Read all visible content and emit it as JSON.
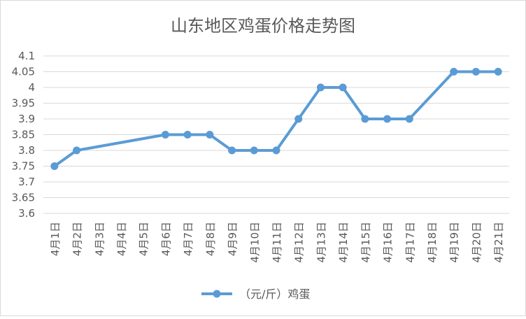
{
  "chart_data": {
    "type": "line",
    "title": "山东地区鸡蛋价格走势图",
    "xlabel": "",
    "ylabel": "",
    "categories": [
      "4月1日",
      "4月2日",
      "4月3日",
      "4月4日",
      "4月5日",
      "4月6日",
      "4月7日",
      "4月8日",
      "4月9日",
      "4月10日",
      "4月11日",
      "4月12日",
      "4月13日",
      "4月14日",
      "4月15日",
      "4月16日",
      "4月17日",
      "4月18日",
      "4月19日",
      "4月20日",
      "4月21日"
    ],
    "series": [
      {
        "name": "（元/斤）鸡蛋",
        "values": [
          3.75,
          3.8,
          null,
          null,
          null,
          3.85,
          3.85,
          3.85,
          3.8,
          3.8,
          3.8,
          3.9,
          4.0,
          4.0,
          3.9,
          3.9,
          3.9,
          null,
          4.05,
          4.05,
          4.05
        ]
      }
    ],
    "ylim": [
      3.6,
      4.1
    ],
    "yticks": [
      "3.6",
      "3.65",
      "3.7",
      "3.75",
      "3.8",
      "3.85",
      "3.9",
      "3.95",
      "4",
      "4.05",
      "4.1"
    ],
    "grid": true,
    "legend": "bottom",
    "colors": {
      "line": "#5B9BD5",
      "grid": "#D9D9D9",
      "axis_text": "#595959",
      "title": "#595959",
      "border": "#D9D9D9"
    }
  }
}
